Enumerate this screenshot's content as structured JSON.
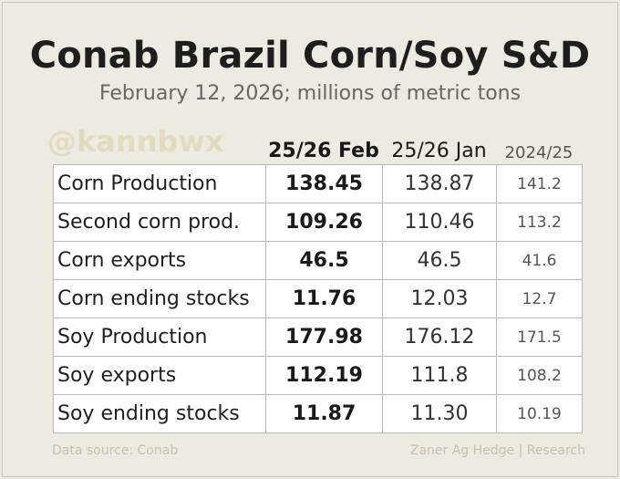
{
  "title": "Conab Brazil Corn/Soy S&D",
  "subtitle": "February 12, 2026; millions of metric tons",
  "watermark": "@kannbwx",
  "chart_data": {
    "type": "table",
    "columns": [
      "25/26 Feb",
      "25/26 Jan",
      "2024/25"
    ],
    "rows": [
      {
        "label": "Corn Production",
        "values": [
          "138.45",
          "138.87",
          "141.2"
        ]
      },
      {
        "label": "Second corn prod.",
        "values": [
          "109.26",
          "110.46",
          "113.2"
        ]
      },
      {
        "label": "Corn exports",
        "values": [
          "46.5",
          "46.5",
          "41.6"
        ]
      },
      {
        "label": "Corn ending stocks",
        "values": [
          "11.76",
          "12.03",
          "12.7"
        ]
      },
      {
        "label": "Soy Production",
        "values": [
          "177.98",
          "176.12",
          "171.5"
        ]
      },
      {
        "label": "Soy exports",
        "values": [
          "112.19",
          "111.8",
          "108.2"
        ]
      },
      {
        "label": "Soy ending stocks",
        "values": [
          "11.87",
          "11.30",
          "10.19"
        ]
      }
    ]
  },
  "footer": {
    "source": "Data source: Conab",
    "credit": "Zaner Ag Hedge | Research"
  }
}
